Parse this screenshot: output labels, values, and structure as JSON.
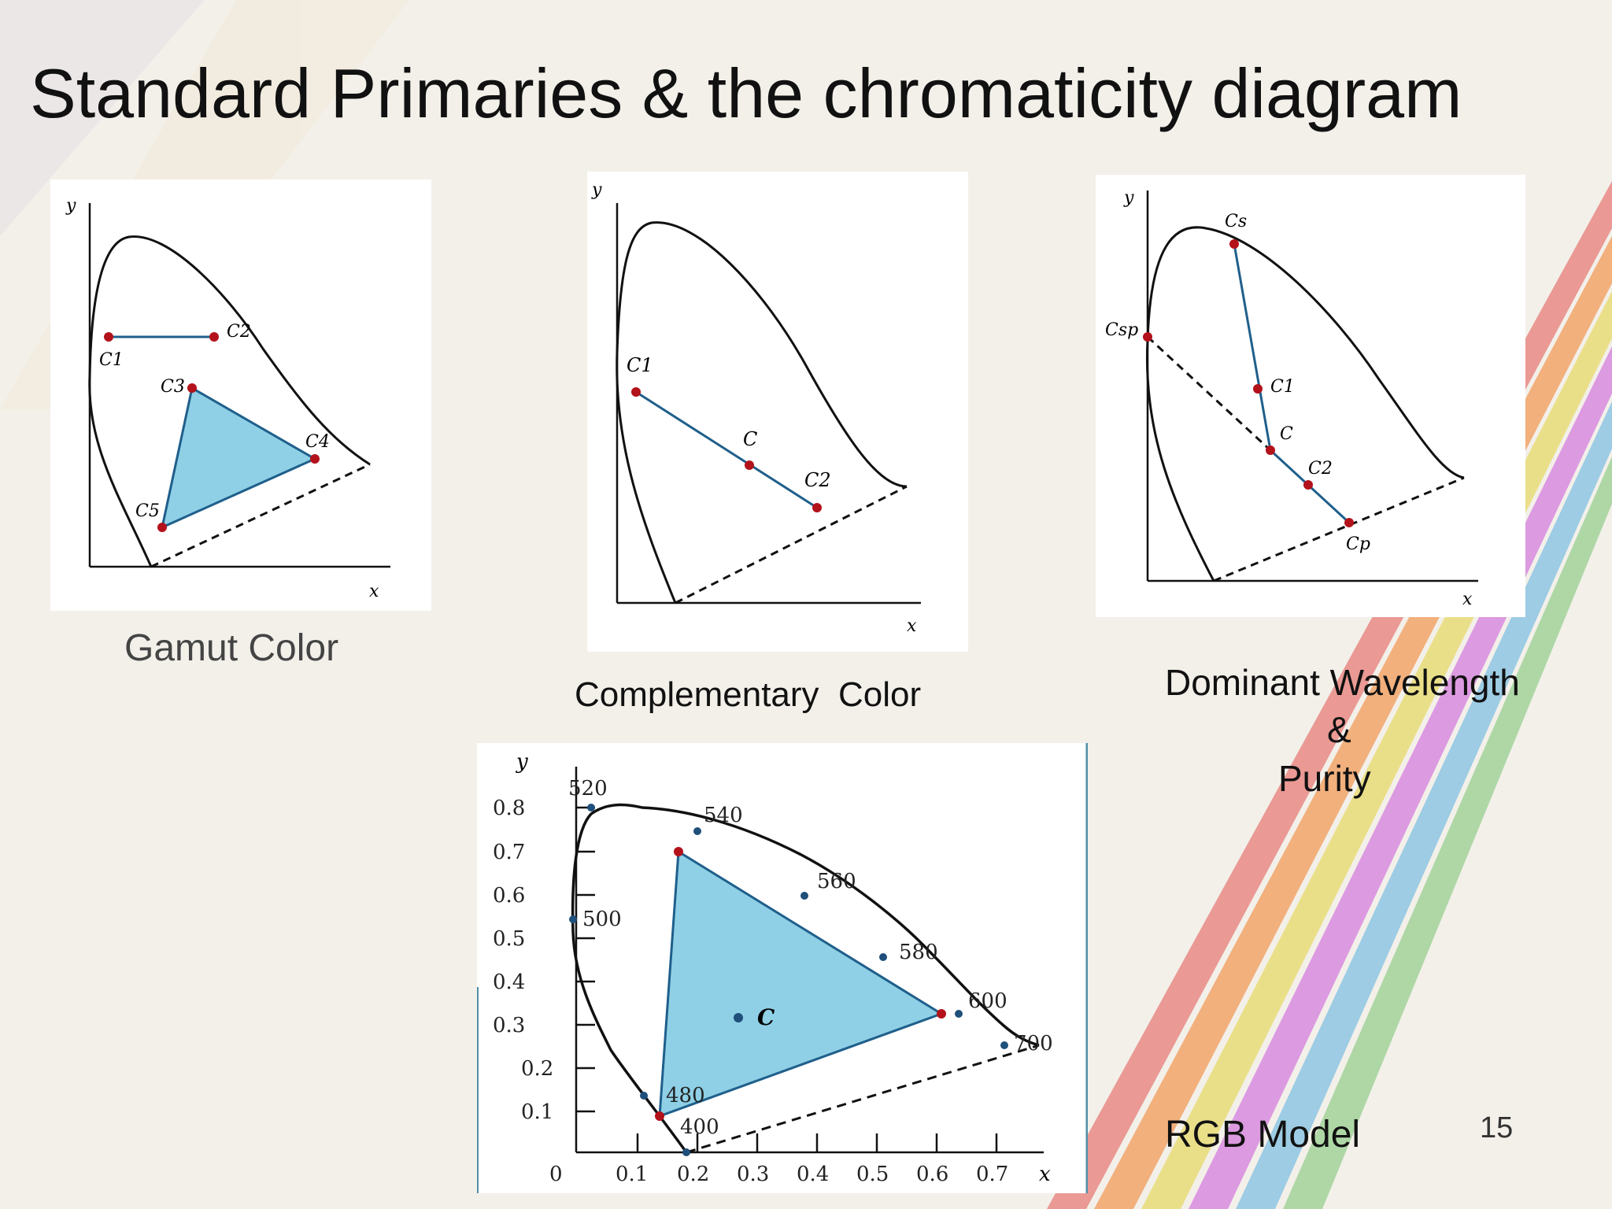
{
  "slide": {
    "title": "Standard Primaries & the chromaticity diagram",
    "page_number": "15"
  },
  "colors": {
    "curve": "#111111",
    "line": "#1f5f8b",
    "fill": "#8fd0e6",
    "point_red": "#b3121b",
    "point_blue": "#1f4f7b",
    "stripe_colors": [
      "#e98a86",
      "#f2a56b",
      "#e9dd79",
      "#d98ce0",
      "#8fc6e3",
      "#a3d39a"
    ]
  },
  "diagrams": {
    "gamut": {
      "caption": "Gamut Color",
      "axis_x": "x",
      "axis_y": "y",
      "points": [
        "C1",
        "C2",
        "C3",
        "C4",
        "C5"
      ]
    },
    "complementary": {
      "caption": "Complementary  Color",
      "axis_x": "x",
      "axis_y": "y",
      "points": [
        "C1",
        "C",
        "C2"
      ]
    },
    "dominant": {
      "caption_line1": "Dominant Wavelength",
      "caption_line2": "&",
      "caption_line3": "Purity",
      "axis_x": "x",
      "axis_y": "y",
      "points": [
        "Cs",
        "Csp",
        "C1",
        "C",
        "C2",
        "Cp"
      ]
    },
    "rgb": {
      "caption": "RGB Model",
      "axis_x": "x",
      "axis_y": "y",
      "y_ticks": [
        "0.8",
        "0.7",
        "0.6",
        "0.5",
        "0.4",
        "0.3",
        "0.2",
        "0.1"
      ],
      "x_ticks": [
        "0",
        "0.1",
        "0.2",
        "0.3",
        "0.4",
        "0.5",
        "0.6",
        "0.7"
      ],
      "wavelengths": [
        "520",
        "540",
        "560",
        "580",
        "600",
        "700",
        "500",
        "480",
        "400"
      ],
      "center_label": "C"
    }
  }
}
